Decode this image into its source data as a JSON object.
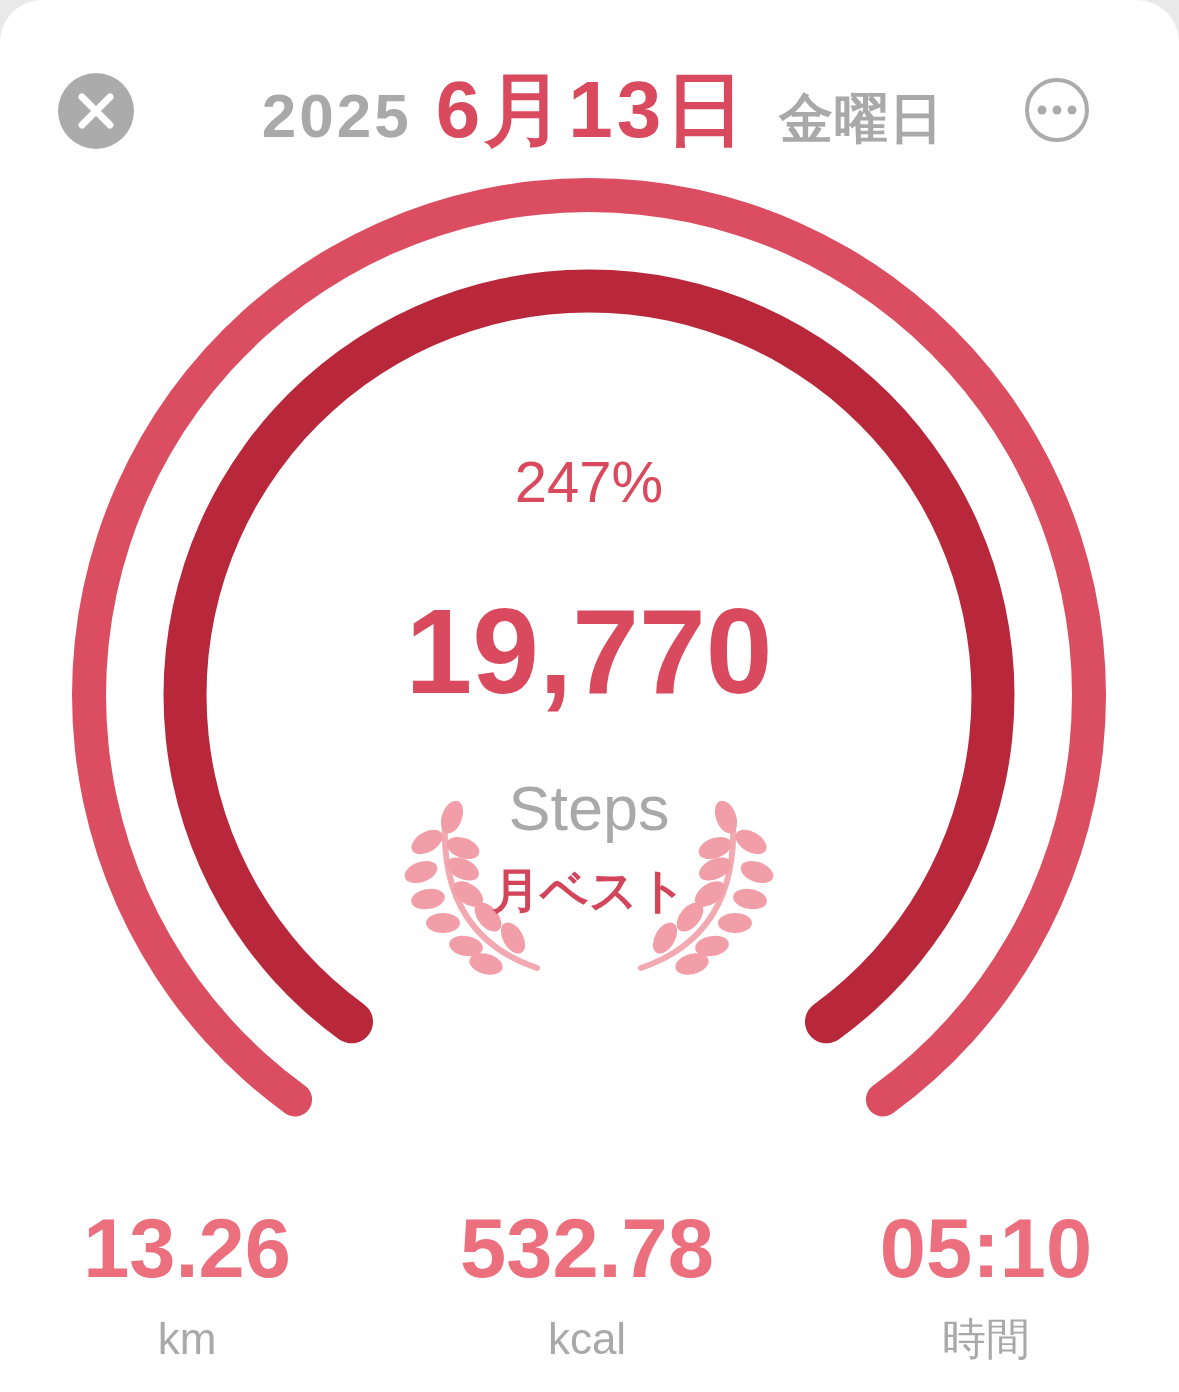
{
  "chart_data": {
    "type": "donut",
    "title": "2025 6月13日 金曜日",
    "categories": [
      null
    ],
    "series": [
      {
        "color": "#db4e61",
        "values": [
          100
        ]
      },
      {
        "color": "#b8283a",
        "values": [
          100
        ]
      }
    ],
    "annotations": [
      "247%",
      "19,770",
      "Steps",
      "月ベスト",
      "13.26",
      "km",
      "532.78",
      "kcal",
      "05:10",
      "時間"
    ]
  }
}
